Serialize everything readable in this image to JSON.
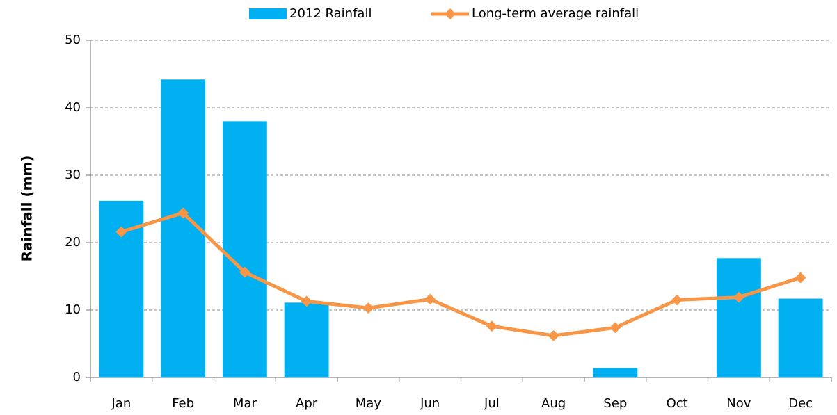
{
  "chart_data": {
    "type": "bar",
    "y_label": "Rainfall (mm)",
    "categories": [
      "Jan",
      "Feb",
      "Mar",
      "Apr",
      "May",
      "Jun",
      "Jul",
      "Aug",
      "Sep",
      "Oct",
      "Nov",
      "Dec"
    ],
    "series": [
      {
        "name": "2012 Rainfall",
        "type": "bar",
        "color": "#00b0f0",
        "values": [
          26.2,
          44.2,
          38.0,
          11.1,
          0,
          0,
          0,
          0,
          1.4,
          0,
          17.7,
          11.7
        ]
      },
      {
        "name": "Long-term average rainfall",
        "type": "line",
        "color": "#f79646",
        "values": [
          21.6,
          24.4,
          15.6,
          11.3,
          10.3,
          11.6,
          7.6,
          6.2,
          7.4,
          11.5,
          11.9,
          14.8
        ]
      }
    ],
    "ylim": [
      0,
      50
    ],
    "yticks": [
      0,
      10,
      20,
      30,
      40,
      50
    ],
    "grid": true,
    "legend": "top"
  }
}
